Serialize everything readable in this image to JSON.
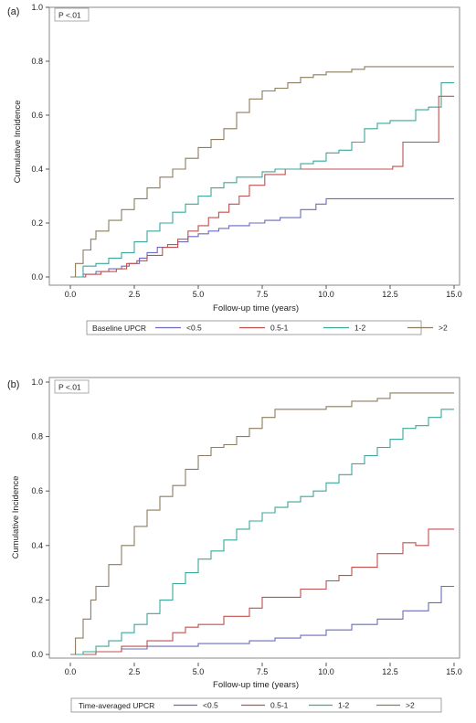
{
  "chart_data": [
    {
      "type": "line",
      "panel_label": "(a)",
      "p_value": "P <.01",
      "xlabel": "Follow-up time (years)",
      "ylabel": "Cumulative Incidence",
      "xlim": [
        0,
        15
      ],
      "ylim": [
        0,
        1
      ],
      "x_ticks": [
        "0.0",
        "2.5",
        "5.0",
        "7.5",
        "10.0",
        "12.5",
        "15.0"
      ],
      "y_ticks": [
        "0.0",
        "0.2",
        "0.4",
        "0.6",
        "0.8",
        "1.0"
      ],
      "legend_title": "Baseline UPCR",
      "grid": false,
      "series": [
        {
          "name": "<0.5",
          "color": "#6b6bc0",
          "x": [
            0,
            0.5,
            1.0,
            1.5,
            2.0,
            2.3,
            2.7,
            3.0,
            3.4,
            3.8,
            4.2,
            4.6,
            5.0,
            5.4,
            5.8,
            6.2,
            7.0,
            7.6,
            8.2,
            9.0,
            9.6,
            10.0,
            12.0,
            15.0
          ],
          "y": [
            0,
            0.01,
            0.02,
            0.03,
            0.04,
            0.05,
            0.07,
            0.09,
            0.11,
            0.12,
            0.13,
            0.15,
            0.16,
            0.17,
            0.18,
            0.19,
            0.2,
            0.21,
            0.22,
            0.25,
            0.27,
            0.29,
            0.29,
            0.29
          ]
        },
        {
          "name": "0.5-1",
          "color": "#c0504d",
          "x": [
            0,
            0.6,
            1.2,
            1.8,
            2.2,
            2.6,
            3.0,
            3.6,
            4.2,
            4.6,
            5.0,
            5.4,
            5.8,
            6.2,
            6.6,
            7.0,
            7.6,
            8.4,
            9.0,
            10.0,
            11.0,
            12.0,
            12.6,
            13.0,
            14.0,
            14.4,
            15.0
          ],
          "y": [
            0,
            0.01,
            0.02,
            0.03,
            0.05,
            0.06,
            0.08,
            0.11,
            0.14,
            0.17,
            0.19,
            0.22,
            0.24,
            0.27,
            0.3,
            0.34,
            0.38,
            0.4,
            0.4,
            0.4,
            0.4,
            0.4,
            0.41,
            0.5,
            0.5,
            0.67,
            0.67
          ]
        },
        {
          "name": "1-2",
          "color": "#3aa89a",
          "x": [
            0,
            0.5,
            1.0,
            1.5,
            2.0,
            2.5,
            3.0,
            3.5,
            4.0,
            4.5,
            5.0,
            5.5,
            6.0,
            6.5,
            7.0,
            7.5,
            8.0,
            8.5,
            9.0,
            9.5,
            10.0,
            10.5,
            11.0,
            11.5,
            12.0,
            12.5,
            13.0,
            13.5,
            14.0,
            14.5,
            15.0
          ],
          "y": [
            0,
            0.04,
            0.05,
            0.07,
            0.09,
            0.13,
            0.17,
            0.2,
            0.24,
            0.27,
            0.3,
            0.33,
            0.35,
            0.37,
            0.37,
            0.39,
            0.4,
            0.4,
            0.42,
            0.43,
            0.46,
            0.47,
            0.5,
            0.55,
            0.57,
            0.58,
            0.58,
            0.62,
            0.63,
            0.72,
            0.72
          ]
        },
        {
          "name": ">2",
          "color": "#8c7d5f",
          "x": [
            0,
            0.2,
            0.5,
            0.8,
            1.0,
            1.5,
            2.0,
            2.5,
            3.0,
            3.5,
            4.0,
            4.5,
            5.0,
            5.5,
            6.0,
            6.5,
            7.0,
            7.5,
            8.0,
            8.5,
            9.0,
            9.5,
            10.0,
            10.5,
            11.0,
            11.5,
            12.0,
            13.0,
            14.0,
            15.0
          ],
          "y": [
            0,
            0.05,
            0.1,
            0.14,
            0.17,
            0.21,
            0.25,
            0.29,
            0.33,
            0.37,
            0.4,
            0.44,
            0.48,
            0.51,
            0.55,
            0.61,
            0.66,
            0.69,
            0.7,
            0.72,
            0.74,
            0.75,
            0.76,
            0.76,
            0.77,
            0.78,
            0.78,
            0.78,
            0.78,
            0.78
          ]
        }
      ]
    },
    {
      "type": "line",
      "panel_label": "(b)",
      "p_value": "P <.01",
      "xlabel": "Follow-up time (years)",
      "ylabel": "Cumulative Incidence",
      "xlim": [
        0,
        15
      ],
      "ylim": [
        0,
        1
      ],
      "x_ticks": [
        "0.0",
        "2.5",
        "5.0",
        "7.5",
        "10.0",
        "12.5",
        "15.0"
      ],
      "y_ticks": [
        "0.0",
        "0.2",
        "0.4",
        "0.6",
        "0.8",
        "1.0"
      ],
      "legend_title": "Time-averaged UPCR",
      "grid": false,
      "series": [
        {
          "name": "<0.5",
          "color": "#6b6bc0",
          "x": [
            0,
            1.0,
            2.0,
            3.0,
            4.0,
            5.0,
            6.0,
            7.0,
            8.0,
            9.0,
            10.0,
            11.0,
            12.0,
            13.0,
            14.0,
            14.5,
            15.0
          ],
          "y": [
            0,
            0.01,
            0.02,
            0.03,
            0.03,
            0.04,
            0.04,
            0.05,
            0.06,
            0.07,
            0.09,
            0.11,
            0.13,
            0.16,
            0.19,
            0.25,
            0.25
          ]
        },
        {
          "name": "0.5-1",
          "color": "#c0504d",
          "x": [
            0,
            1.0,
            2.0,
            3.0,
            4.0,
            4.5,
            5.0,
            6.0,
            7.0,
            7.5,
            8.0,
            9.0,
            10.0,
            10.5,
            11.0,
            12.0,
            13.0,
            13.5,
            14.0,
            15.0
          ],
          "y": [
            0,
            0.01,
            0.03,
            0.05,
            0.08,
            0.1,
            0.11,
            0.14,
            0.17,
            0.21,
            0.21,
            0.24,
            0.27,
            0.29,
            0.32,
            0.37,
            0.41,
            0.4,
            0.46,
            0.46
          ]
        },
        {
          "name": "1-2",
          "color": "#3aa89a",
          "x": [
            0,
            0.5,
            1.0,
            1.5,
            2.0,
            2.5,
            3.0,
            3.5,
            4.0,
            4.5,
            5.0,
            5.5,
            6.0,
            6.5,
            7.0,
            7.5,
            8.0,
            8.5,
            9.0,
            9.5,
            10.0,
            10.5,
            11.0,
            11.5,
            12.0,
            12.5,
            13.0,
            13.5,
            14.0,
            14.5,
            15.0
          ],
          "y": [
            0,
            0.01,
            0.03,
            0.05,
            0.08,
            0.11,
            0.15,
            0.2,
            0.26,
            0.3,
            0.35,
            0.38,
            0.42,
            0.46,
            0.49,
            0.52,
            0.54,
            0.56,
            0.58,
            0.6,
            0.63,
            0.66,
            0.7,
            0.73,
            0.76,
            0.79,
            0.83,
            0.84,
            0.87,
            0.9,
            0.9
          ]
        },
        {
          "name": ">2",
          "color": "#8c7d5f",
          "x": [
            0,
            0.2,
            0.5,
            0.8,
            1.0,
            1.5,
            2.0,
            2.5,
            3.0,
            3.5,
            4.0,
            4.5,
            5.0,
            5.5,
            6.0,
            6.5,
            7.0,
            7.5,
            8.0,
            8.5,
            9.0,
            10.0,
            11.0,
            12.0,
            12.5,
            13.0,
            14.0,
            15.0
          ],
          "y": [
            0,
            0.06,
            0.13,
            0.2,
            0.25,
            0.33,
            0.4,
            0.47,
            0.53,
            0.58,
            0.62,
            0.68,
            0.73,
            0.76,
            0.77,
            0.8,
            0.83,
            0.87,
            0.9,
            0.9,
            0.9,
            0.91,
            0.93,
            0.94,
            0.96,
            0.96,
            0.96,
            0.96
          ]
        }
      ]
    }
  ]
}
